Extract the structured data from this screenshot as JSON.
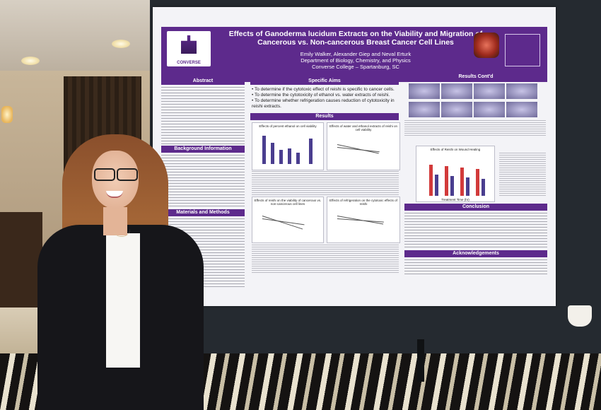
{
  "poster": {
    "title": "Effects of Ganoderma lucidum Extracts on the Viability and Migration of Cancerous vs. Non-cancerous Breast Cancer Cell Lines",
    "authors": "Emily Walker, Alexander Giep and Neval Erturk",
    "department": "Department of Biology, Chemistry, and Physics",
    "college": "Converse College – Spartanburg, SC",
    "logo_text": "CONVERSE",
    "sections": {
      "abstract": "Abstract",
      "background": "Background Information",
      "materials": "Materials and Methods",
      "specific_aims": "Specific Aims",
      "results": "Results",
      "results_cont": "Results Cont'd",
      "conclusion": "Conclusion",
      "acknowledgements": "Acknowledgements"
    },
    "aims": [
      "• To determine if the cytotoxic effect of reishi is specific to cancer cells.",
      "• To determine the cytotoxicity of ethanol vs. water extracts of reishi.",
      "• To determine whether refrigeration causes reduction of cytotoxicity in reishi extracts."
    ],
    "graphs": {
      "g1": "Effects of percent ethanol on cell viability",
      "g2": "Effects of water and ethanol extracts of reishi on cell viability",
      "g3": "Effects of reishi on the viability of cancerous vs. non-cancerous cell lines",
      "g4": "Effects of refrigeration on the cytotoxic effects of reishi",
      "g5": "Effects of Reishi on Wound Healing"
    },
    "wound_xlabel": "Treatment Time (hr)"
  },
  "colors": {
    "poster_purple": "#5d2a8c",
    "bar_color": "#4a3e8f"
  }
}
